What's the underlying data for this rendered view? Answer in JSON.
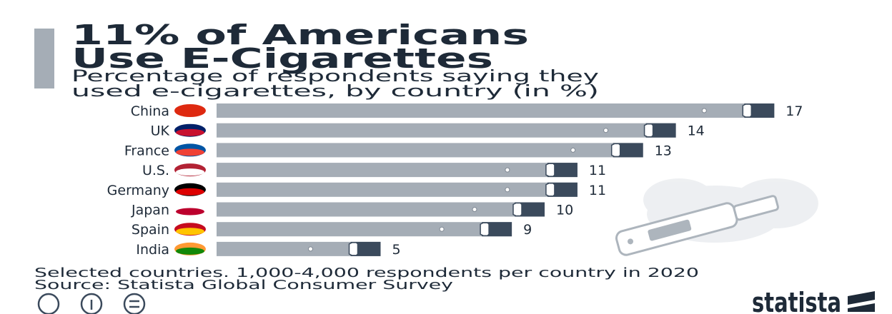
{
  "chart_data": {
    "type": "bar",
    "title": [
      "11% of Americans",
      "Use E-Cigarettes"
    ],
    "subtitle": [
      "Percentage of respondents saying they",
      "used e-cigarettes, by country (in %)"
    ],
    "categories": [
      "China",
      "UK",
      "France",
      "U.S.",
      "Germany",
      "Japan",
      "Spain",
      "India"
    ],
    "values": [
      17,
      14,
      13,
      11,
      11,
      10,
      9,
      5
    ],
    "color": "#a5adb6",
    "end_color": "#3b4a5c",
    "note": "Selected countries. 1,000-4,000 respondents per country in 2020",
    "source": "Source: Statista Global Consumer Survey",
    "logo": "statista"
  }
}
